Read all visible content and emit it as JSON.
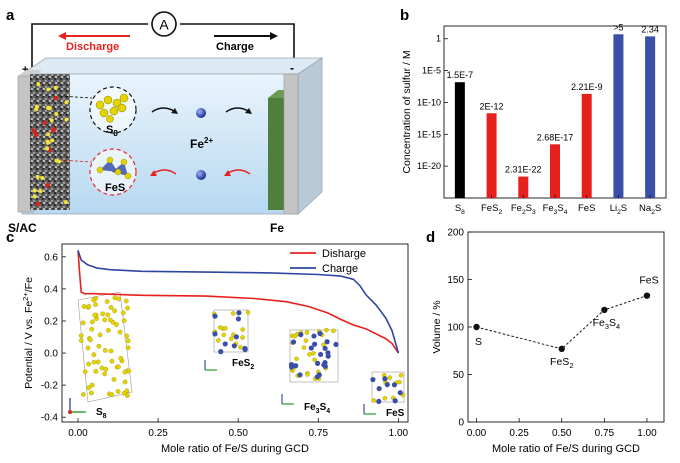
{
  "panels": {
    "a": {
      "label": "a",
      "ammeter": "A",
      "discharge": "Discharge",
      "charge": "Charge",
      "plus": "+",
      "minus": "-",
      "s8": "S",
      "s8_sub": "8",
      "fes": "FeS",
      "ion": "Fe",
      "ion_sup": "2+",
      "sac": "S/AC",
      "fe": "Fe",
      "colors": {
        "discharge": "#e52421",
        "cathode_shell": "#b7b7b7",
        "anode": "#4f7f3c",
        "electrolyte": "#cfe5f7"
      }
    },
    "b": {
      "label": "b",
      "chart_data": {
        "type": "bar",
        "ylabel": "Concentration of sulfur / M",
        "yscale": "log",
        "yticks": [
          "1E-20",
          "1E-15",
          "1E-10",
          "1E-5",
          "1"
        ],
        "categories": [
          {
            "main": "S",
            "sub": "8"
          },
          {
            "main": "FeS",
            "sub": "2"
          },
          {
            "main": "Fe",
            "sub": "2",
            "main2": "S",
            "sub2": "3"
          },
          {
            "main": "Fe",
            "sub": "3",
            "main2": "S",
            "sub2": "4"
          },
          {
            "main": "FeS",
            "sub": ""
          },
          {
            "main": "Li",
            "sub": "2",
            "main2": "S",
            "sub2": ""
          },
          {
            "main": "Na",
            "sub": "2",
            "main2": "S",
            "sub2": ""
          }
        ],
        "values": [
          1.5e-07,
          2e-12,
          2.31e-22,
          2.68e-17,
          2.21e-09,
          5,
          2.34
        ],
        "value_labels": [
          "1.5E-7",
          "2E-12",
          "2.31E-22",
          "2.68E-17",
          "2.21E-9",
          ">5",
          "2.34"
        ],
        "colors": [
          "#000000",
          "#e8201d",
          "#e8201d",
          "#e8201d",
          "#e8201d",
          "#3b4fa8",
          "#3b4fa8"
        ],
        "ylim_log10": [
          -25,
          2
        ]
      }
    },
    "c": {
      "label": "c",
      "chart_data": {
        "type": "line",
        "xlabel": "Mole ratio of Fe/S during GCD",
        "ylabel": "Potential / V vs. Fe",
        "ylabel_sup": "2+",
        "ylabel_tail": "/Fe",
        "xlim": [
          -0.05,
          1.03
        ],
        "ylim": [
          -0.43,
          0.68
        ],
        "xticks": [
          "0.00",
          "0.25",
          "0.50",
          "0.75",
          "1.00"
        ],
        "yticks": [
          "-0.4",
          "-0.2",
          "0.0",
          "0.2",
          "0.4",
          "0.6"
        ],
        "series": [
          {
            "name": "Disharge",
            "color": "#e8201d",
            "x": [
              0,
              0.005,
              0.01,
              0.02,
              0.05,
              0.2,
              0.4,
              0.55,
              0.65,
              0.72,
              0.78,
              0.82,
              0.86,
              0.9,
              0.93,
              0.96,
              0.98,
              0.99,
              1.0
            ],
            "y": [
              0.64,
              0.5,
              0.38,
              0.37,
              0.37,
              0.36,
              0.355,
              0.34,
              0.32,
              0.29,
              0.25,
              0.21,
              0.175,
              0.15,
              0.12,
              0.09,
              0.06,
              0.03,
              0.0
            ]
          },
          {
            "name": "Charge",
            "color": "#2e46a3",
            "x": [
              0,
              0.01,
              0.03,
              0.06,
              0.1,
              0.2,
              0.4,
              0.6,
              0.75,
              0.82,
              0.86,
              0.88,
              0.9,
              0.93,
              0.96,
              0.98,
              0.99,
              1.0
            ],
            "y": [
              0.64,
              0.58,
              0.55,
              0.53,
              0.52,
              0.51,
              0.505,
              0.5,
              0.49,
              0.48,
              0.46,
              0.42,
              0.36,
              0.3,
              0.22,
              0.14,
              0.07,
              0.0
            ]
          }
        ],
        "structures": [
          {
            "main": "S",
            "sub": "8"
          },
          {
            "main": "FeS",
            "sub": "2"
          },
          {
            "main": "Fe",
            "sub": "3",
            "main2": "S",
            "sub2": "4"
          },
          {
            "main": "FeS",
            "sub": ""
          }
        ]
      }
    },
    "d": {
      "label": "d",
      "chart_data": {
        "type": "scatter",
        "xlabel": "Mole ratio of Fe/S during GCD",
        "ylabel": "Volume / %",
        "xlim": [
          -0.05,
          1.1
        ],
        "ylim": [
          0,
          200
        ],
        "xticks": [
          "0.00",
          "0.25",
          "0.50",
          "0.75",
          "1.00"
        ],
        "yticks": [
          "0",
          "50",
          "100",
          "150",
          "200"
        ],
        "x": [
          0,
          0.5,
          0.75,
          1.0
        ],
        "y": [
          100,
          77,
          118,
          133
        ],
        "point_labels": [
          {
            "main": "S",
            "sub": ""
          },
          {
            "main": "FeS",
            "sub": "2"
          },
          {
            "main": "Fe",
            "sub": "3",
            "main2": "S",
            "sub2": "4"
          },
          {
            "main": "FeS",
            "sub": ""
          }
        ]
      }
    }
  }
}
